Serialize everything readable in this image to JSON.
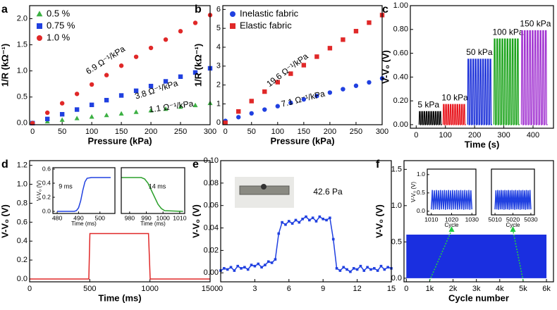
{
  "chart_data": [
    {
      "type": "scatter",
      "panel": "a",
      "xlabel": "Pressure (kPa)",
      "ylabel": "1/R (kΩ⁻¹)",
      "xlim": [
        -5,
        300
      ],
      "xticks": [
        0,
        50,
        100,
        150,
        200,
        250,
        300
      ],
      "ylim": [
        -0.03,
        2.25
      ],
      "yticks": [
        {
          "value": 0,
          "label": "0.0"
        },
        {
          "value": 0.5,
          "label": "0.5"
        },
        {
          "value": 1,
          "label": "1.0"
        },
        {
          "value": 1.5,
          "label": "1.5"
        },
        {
          "value": 2,
          "label": "2.0"
        }
      ],
      "legend": "upper left",
      "x": [
        0,
        25,
        50,
        75,
        100,
        125,
        150,
        175,
        200,
        225,
        250,
        275,
        300
      ],
      "series": [
        {
          "name": "0.5 %",
          "color": "#3cb043",
          "marker": "triangle",
          "values": [
            0,
            0.03,
            0.06,
            0.09,
            0.12,
            0.15,
            0.18,
            0.21,
            0.24,
            0.27,
            0.31,
            0.34,
            0.38
          ]
        },
        {
          "name": "0.75 %",
          "color": "#2040e0",
          "marker": "square",
          "values": [
            0,
            0.08,
            0.17,
            0.26,
            0.35,
            0.44,
            0.53,
            0.62,
            0.71,
            0.8,
            0.89,
            0.97,
            1.05
          ]
        },
        {
          "name": "1.0 %",
          "color": "#e02828",
          "marker": "circle",
          "values": [
            0,
            0.2,
            0.38,
            0.56,
            0.74,
            0.92,
            1.1,
            1.27,
            1.44,
            1.6,
            1.76,
            1.92,
            2.07
          ]
        }
      ],
      "annotations": [
        "6.9 Ω⁻¹/kPa",
        "3.8 Ω⁻¹/kPa",
        "1.1 Ω⁻¹/kPa"
      ]
    },
    {
      "type": "scatter",
      "panel": "b",
      "xlabel": "Pressure (kPa)",
      "ylabel": "1/R (kΩ⁻¹)",
      "xlim": [
        -5,
        300
      ],
      "xticks": [
        0,
        50,
        100,
        150,
        200,
        250,
        300
      ],
      "ylim": [
        -0.1,
        6.2
      ],
      "yticks": [
        0,
        1,
        2,
        3,
        4,
        5,
        6
      ],
      "legend": "upper left",
      "x": [
        0,
        25,
        50,
        75,
        100,
        125,
        150,
        175,
        200,
        225,
        250,
        275,
        300
      ],
      "series": [
        {
          "name": "Inelastic fabric",
          "color": "#2040e0",
          "marker": "circle",
          "values": [
            0.1,
            0.3,
            0.5,
            0.7,
            0.88,
            1.06,
            1.24,
            1.42,
            1.6,
            1.78,
            1.96,
            2.14,
            2.35
          ]
        },
        {
          "name": "Elastic fabric",
          "color": "#e02828",
          "marker": "square",
          "values": [
            0,
            0.6,
            1.15,
            1.65,
            2.15,
            2.6,
            3.05,
            3.5,
            3.95,
            4.4,
            4.85,
            5.3,
            5.7
          ]
        }
      ],
      "annotations": [
        "19.6 Ω⁻¹/kPa",
        "7.1 Ω⁻¹/kPa"
      ]
    },
    {
      "type": "pulse",
      "panel": "c",
      "xlabel": "Time (s)",
      "ylabel": "V-V₀ (V)",
      "xlim": [
        -20,
        470
      ],
      "xticks": [
        0,
        100,
        200,
        300,
        400
      ],
      "ylim": [
        -0.03,
        1.0
      ],
      "yticks": [
        {
          "value": 0,
          "label": "0.00"
        },
        {
          "value": 0.2,
          "label": "0.20"
        },
        {
          "value": 0.4,
          "label": "0.40"
        },
        {
          "value": 0.6,
          "label": "0.60"
        },
        {
          "value": 0.8,
          "label": "0.80"
        },
        {
          "value": 1,
          "label": "1.00"
        }
      ],
      "series": [
        {
          "name": "5 kPa",
          "color": "#000000",
          "xrange": [
            10,
            88
          ],
          "peak": 0.11,
          "cycles": 10
        },
        {
          "name": "10 kPa",
          "color": "#e8141c",
          "xrange": [
            92,
            170
          ],
          "peak": 0.17,
          "cycles": 10
        },
        {
          "name": "50 kPa",
          "color": "#1a2fd8",
          "xrange": [
            176,
            260
          ],
          "peak": 0.55,
          "cycles": 10
        },
        {
          "name": "100 kPa",
          "color": "#1aa31a",
          "xrange": [
            266,
            354
          ],
          "peak": 0.72,
          "cycles": 10
        },
        {
          "name": "150 kPa",
          "color": "#a030d0",
          "xrange": [
            360,
            450
          ],
          "peak": 0.79,
          "cycles": 10
        }
      ]
    },
    {
      "type": "line",
      "panel": "d",
      "xlabel": "Time (ms)",
      "ylabel": "V-V₀ (V)",
      "xlim": [
        0,
        1500
      ],
      "xticks": [
        0,
        500,
        1000,
        1500
      ],
      "ylim": [
        -0.03,
        1.25
      ],
      "yticks": [
        {
          "value": 0,
          "label": "0.0"
        },
        {
          "value": 0.2,
          "label": "0.2"
        },
        {
          "value": 0.4,
          "label": "0.4"
        },
        {
          "value": 0.6,
          "label": "0.6"
        },
        {
          "value": 0.8,
          "label": "0.8"
        },
        {
          "value": 1,
          "label": "1.0"
        },
        {
          "value": 1.2,
          "label": "1.2"
        }
      ],
      "x": [
        0,
        250,
        492,
        501,
        750,
        988,
        1002,
        1250,
        1500
      ],
      "series": [
        {
          "color": "#e02828",
          "values": [
            0,
            0,
            0,
            0.48,
            0.48,
            0.48,
            0,
            0,
            0
          ]
        }
      ]
    },
    {
      "type": "line",
      "xlabel": "Time (ms)",
      "ylabel": "V-V₀ (V)",
      "xlim": [
        478,
        507
      ],
      "xticks": [
        480,
        490,
        500
      ],
      "ylim": [
        -0.03,
        0.62
      ],
      "yticks": [
        {
          "value": 0,
          "label": "0.0"
        },
        {
          "value": 0.2,
          "label": "0.2"
        },
        {
          "value": 0.4,
          "label": "0.4"
        },
        {
          "value": 0.6,
          "label": "0.6"
        }
      ],
      "x": [
        480,
        488,
        489,
        490,
        491,
        492,
        493,
        494,
        496,
        505
      ],
      "series": [
        {
          "color": "#2040e0",
          "values": [
            0,
            0,
            0.01,
            0.05,
            0.15,
            0.3,
            0.42,
            0.47,
            0.48,
            0.48
          ]
        }
      ],
      "annotations": [
        "9 ms"
      ]
    },
    {
      "type": "line",
      "xlabel": "Time (ms)",
      "xlim": [
        975,
        1013
      ],
      "xticks": [
        980,
        990,
        1000,
        1010
      ],
      "ylim": [
        -0.03,
        0.62
      ],
      "x": [
        975,
        987,
        989,
        991,
        993,
        995,
        997,
        999,
        1001,
        1012
      ],
      "series": [
        {
          "color": "#2ca02c",
          "values": [
            0.48,
            0.48,
            0.46,
            0.4,
            0.3,
            0.2,
            0.1,
            0.04,
            0.01,
            0
          ]
        }
      ],
      "annotations": [
        "14 ms"
      ]
    },
    {
      "type": "line",
      "panel": "e",
      "ylabel": "V-V₀ (V)",
      "xlim": [
        0,
        15
      ],
      "xticks": [
        0,
        3,
        6,
        9,
        12,
        15
      ],
      "ylim": [
        -0.008,
        0.1
      ],
      "yticks": [
        {
          "value": 0,
          "label": "0.00"
        },
        {
          "value": 0.02,
          "label": "0.02"
        },
        {
          "value": 0.04,
          "label": "0.04"
        },
        {
          "value": 0.06,
          "label": "0.06"
        },
        {
          "value": 0.08,
          "label": "0.08"
        },
        {
          "value": 0.1,
          "label": "0.10"
        }
      ],
      "x": [
        0,
        0.3,
        0.6,
        0.9,
        1.2,
        1.5,
        1.8,
        2.1,
        2.4,
        2.7,
        3,
        3.3,
        3.6,
        3.9,
        4.2,
        4.5,
        4.8,
        5.1,
        5.4,
        5.7,
        6,
        6.3,
        6.6,
        6.9,
        7.2,
        7.5,
        7.8,
        8.1,
        8.4,
        8.7,
        9,
        9.3,
        9.6,
        9.9,
        10.2,
        10.5,
        10.8,
        11.1,
        11.4,
        11.7,
        12,
        12.3,
        12.6,
        12.9,
        13.2,
        13.5,
        13.8,
        14.1,
        14.4,
        14.7,
        15
      ],
      "series": [
        {
          "color": "#2040e0",
          "marker": "square",
          "values": [
            0.002,
            0.004,
            0.003,
            0.005,
            0.002,
            0.006,
            0.004,
            0.005,
            0.003,
            0.007,
            0.006,
            0.008,
            0.005,
            0.007,
            0.01,
            0.009,
            0.012,
            0.035,
            0.045,
            0.043,
            0.046,
            0.044,
            0.047,
            0.045,
            0.048,
            0.05,
            0.047,
            0.049,
            0.046,
            0.05,
            0.048,
            0.047,
            0.049,
            0.03,
            0.004,
            0.002,
            0.005,
            0.003,
            0.001,
            0.004,
            0.003,
            0.006,
            0.002,
            0.005,
            0.003,
            0.004,
            0.002,
            0.006,
            0.003,
            0.005,
            0.004
          ]
        }
      ],
      "annotations": [
        "42.6 Pa"
      ]
    },
    {
      "type": "area",
      "panel": "f",
      "xlabel": "Cycle number",
      "ylabel": "V-V₀ (V)",
      "xlim": [
        -100,
        6300
      ],
      "xticks": [
        0,
        {
          "value": 1000,
          "label": "1k"
        },
        {
          "value": 2000,
          "label": "2k"
        },
        {
          "value": 3000,
          "label": "3k"
        },
        {
          "value": 4000,
          "label": "4k"
        },
        {
          "value": 5000,
          "label": "5k"
        },
        {
          "value": 6000,
          "label": "6k"
        }
      ],
      "ylim": [
        -0.05,
        1.62
      ],
      "yticks": [
        {
          "value": 0,
          "label": "0.0"
        },
        {
          "value": 0.5,
          "label": "0.5"
        },
        {
          "value": 1,
          "label": "1.0"
        },
        {
          "value": 1.5,
          "label": "1.5"
        }
      ],
      "x": [
        0,
        6000
      ],
      "series": [
        {
          "color": "#1a2fe0",
          "values": [
            0.6,
            0.6
          ]
        }
      ]
    },
    {
      "type": "line",
      "xlabel": "Cycle",
      "ylabel": "V-V₀ (V)",
      "xlim": [
        1008,
        1032
      ],
      "xticks": [
        1010,
        1020,
        1030
      ],
      "ylim": [
        -0.1,
        1.15
      ],
      "yticks": [
        {
          "value": 0,
          "label": "0.0"
        },
        {
          "value": 0.5,
          "label": "0.5"
        },
        {
          "value": 1,
          "label": "1.0"
        }
      ],
      "x": [
        1010,
        1010.5,
        1011,
        1011.5,
        1012,
        1012.5,
        1013,
        1013.5,
        1014,
        1014.5,
        1015,
        1015.5,
        1016,
        1016.5,
        1017,
        1017.5,
        1018,
        1018.5,
        1019,
        1019.5,
        1020,
        1020.5,
        1021,
        1021.5,
        1022,
        1022.5,
        1023,
        1023.5,
        1024,
        1024.5,
        1025,
        1025.5,
        1026,
        1026.5,
        1027,
        1027.5,
        1028,
        1028.5,
        1029,
        1029.5,
        1030
      ],
      "series": [
        {
          "color": "#2040e0",
          "values": [
            0.05,
            0.58,
            0.04,
            0.57,
            0.05,
            0.58,
            0.05,
            0.57,
            0.04,
            0.58,
            0.05,
            0.57,
            0.05,
            0.58,
            0.04,
            0.57,
            0.05,
            0.58,
            0.05,
            0.57,
            0.04,
            0.58,
            0.05,
            0.57,
            0.05,
            0.58,
            0.04,
            0.57,
            0.05,
            0.58,
            0.05,
            0.57,
            0.04,
            0.58,
            0.05,
            0.57,
            0.05,
            0.58,
            0.04,
            0.57,
            0.05
          ]
        }
      ]
    },
    {
      "type": "line",
      "xlabel": "Cycle",
      "xlim": [
        5008,
        5032
      ],
      "xticks": [
        5010,
        5020,
        5030
      ],
      "ylim": [
        -0.1,
        1.15
      ],
      "x": [
        5010,
        5010.5,
        5011,
        5011.5,
        5012,
        5012.5,
        5013,
        5013.5,
        5014,
        5014.5,
        5015,
        5015.5,
        5016,
        5016.5,
        5017,
        5017.5,
        5018,
        5018.5,
        5019,
        5019.5,
        5020,
        5020.5,
        5021,
        5021.5,
        5022,
        5022.5,
        5023,
        5023.5,
        5024,
        5024.5,
        5025,
        5025.5,
        5026,
        5026.5,
        5027,
        5027.5,
        5028,
        5028.5,
        5029,
        5029.5,
        5030
      ],
      "series": [
        {
          "color": "#2040e0",
          "values": [
            0.05,
            0.57,
            0.05,
            0.58,
            0.04,
            0.57,
            0.05,
            0.58,
            0.05,
            0.57,
            0.04,
            0.58,
            0.05,
            0.57,
            0.05,
            0.58,
            0.04,
            0.57,
            0.05,
            0.58,
            0.05,
            0.57,
            0.04,
            0.58,
            0.05,
            0.57,
            0.05,
            0.58,
            0.04,
            0.57,
            0.05,
            0.58,
            0.05,
            0.57,
            0.04,
            0.58,
            0.05,
            0.57,
            0.05,
            0.58,
            0.05
          ]
        }
      ]
    }
  ]
}
